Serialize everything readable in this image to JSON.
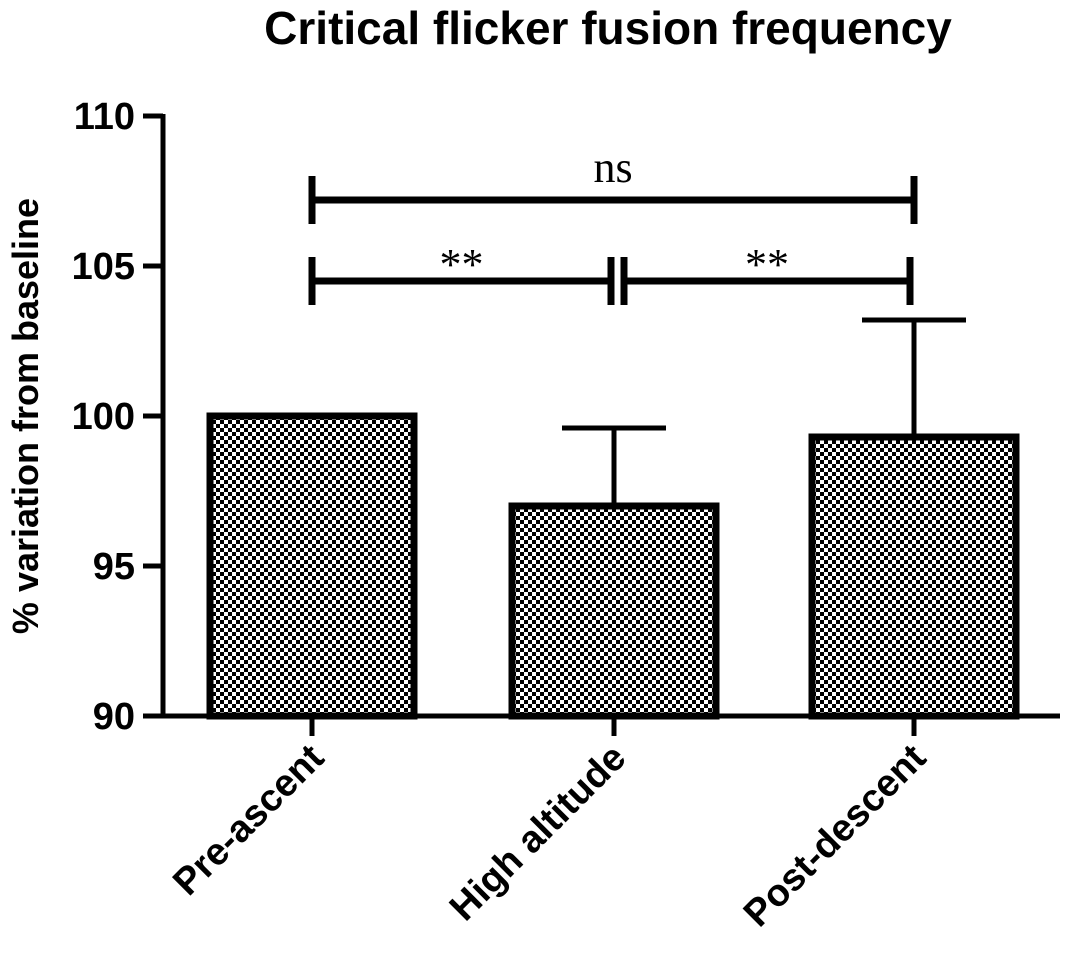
{
  "chart_data": {
    "type": "bar",
    "title": "Critical flicker fusion frequency",
    "xlabel": "",
    "ylabel": "% variation from baseline",
    "categories": [
      "Pre-ascent",
      "High altitude",
      "Post-descent"
    ],
    "values": [
      100,
      97,
      99.3
    ],
    "error_upper": [
      null,
      99.6,
      103.2
    ],
    "ylim": [
      90,
      110
    ],
    "yticks": [
      "90",
      "95",
      "100",
      "105",
      "110"
    ],
    "bar_fill": "checkerboard",
    "grid": false,
    "comparisons": [
      {
        "from": 0,
        "to": 1,
        "level": 104.5,
        "label": "**"
      },
      {
        "from": 1,
        "to": 2,
        "level": 104.5,
        "label": "**"
      },
      {
        "from": 0,
        "to": 2,
        "level": 107.2,
        "label": "ns"
      }
    ]
  }
}
